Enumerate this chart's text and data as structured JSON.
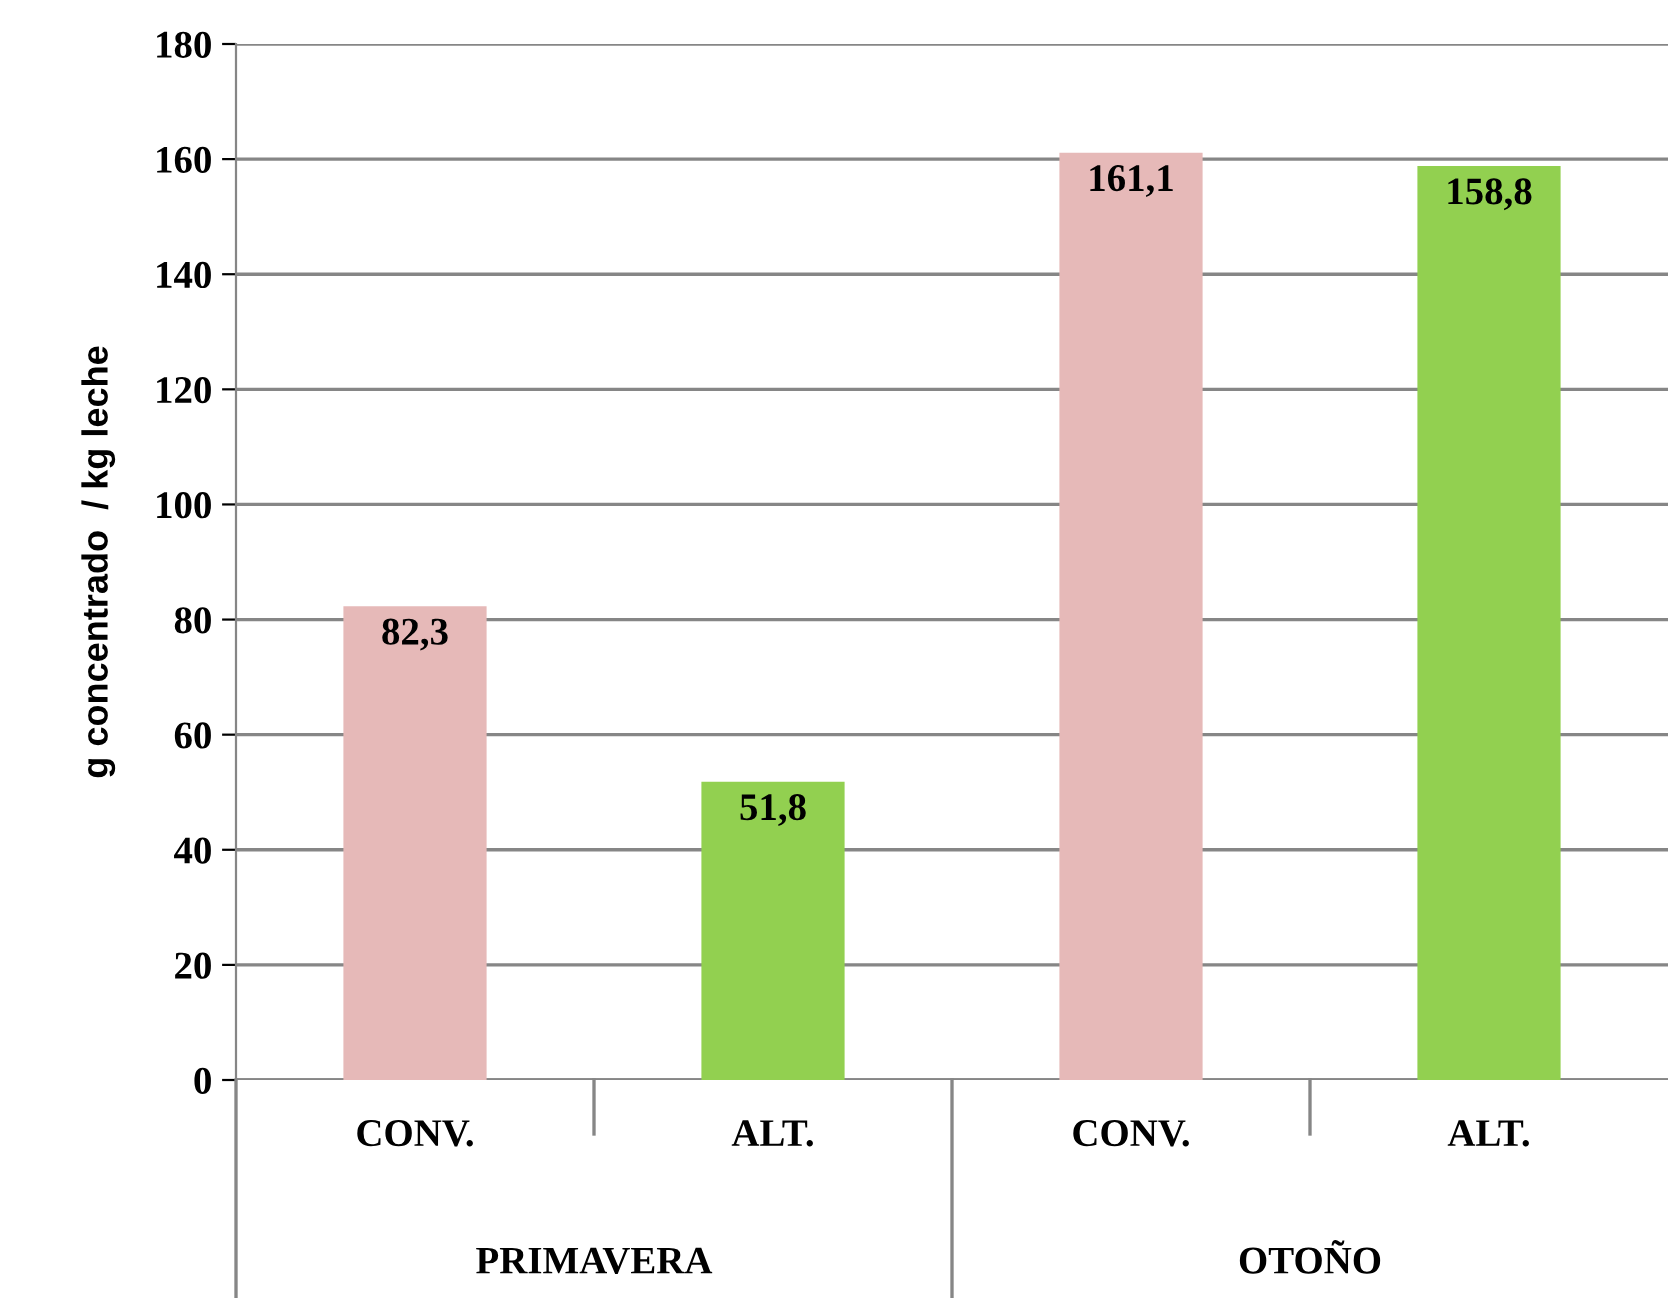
{
  "chart_data": {
    "type": "bar",
    "ylabel": "g concentrado  / kg leche",
    "categories": [
      "CONV.",
      "ALT.",
      "CONV.",
      "ALT."
    ],
    "values": [
      82.3,
      51.8,
      161.1,
      158.8
    ],
    "colors": [
      "#e6b9b8",
      "#92d050",
      "#e6b9b8",
      "#92d050"
    ],
    "value_labels": [
      "82,3",
      "51,8",
      "161,1",
      "158,8"
    ],
    "annotations": [
      "PRIMAVERA",
      "OTOÑO"
    ],
    "ylim": [
      0,
      180
    ],
    "yticks": [
      0,
      20,
      40,
      60,
      80,
      100,
      120,
      140,
      160,
      180
    ],
    "grid": "y",
    "legend": false
  }
}
